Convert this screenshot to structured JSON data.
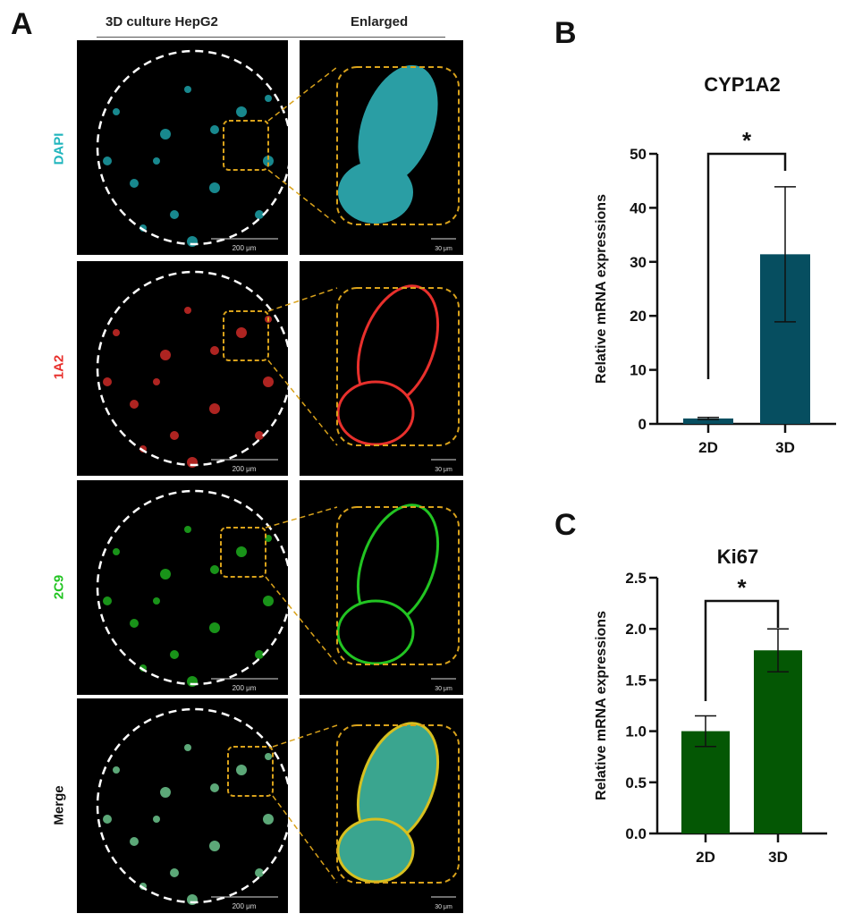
{
  "panel_a": {
    "letter": "A",
    "col_headers": [
      "3D culture HepG2",
      "Enlarged"
    ],
    "rows": [
      {
        "label": "DAPI",
        "color": "#20b5bd"
      },
      {
        "label": "1A2",
        "color": "#e8302c"
      },
      {
        "label": "2C9",
        "color": "#22c422"
      },
      {
        "label": "Merge",
        "color": "#111111"
      }
    ],
    "scale_bar_overview": "200 μm",
    "scale_bar_enlarged": "30 μm",
    "circle_color": "#ffffff",
    "zoom_box_color": "#d9a21b"
  },
  "panel_b": {
    "letter": "B"
  },
  "panel_c": {
    "letter": "C"
  },
  "chart_data": [
    {
      "type": "bar",
      "title": "CYP1A2",
      "categories": [
        "2D",
        "3D"
      ],
      "values": [
        1.0,
        31.4
      ],
      "error": [
        0.2,
        12.5
      ],
      "ylabel": "Relative mRNA expressions",
      "xlabel": "",
      "ylim": [
        0,
        50
      ],
      "yticks": [
        "0",
        "10",
        "20",
        "30",
        "40",
        "50"
      ],
      "significance": "*",
      "bar_color": "#064e60",
      "grid": false
    },
    {
      "type": "bar",
      "title": "Ki67",
      "categories": [
        "2D",
        "3D"
      ],
      "values": [
        1.0,
        1.79
      ],
      "error": [
        0.15,
        0.21
      ],
      "ylabel": "Relative mRNA expressions",
      "xlabel": "",
      "ylim": [
        0,
        2.5
      ],
      "yticks": [
        "0.0",
        "0.5",
        "1.0",
        "1.5",
        "2.0",
        "2.5"
      ],
      "significance": "*",
      "bar_color": "#045704",
      "grid": false
    }
  ]
}
